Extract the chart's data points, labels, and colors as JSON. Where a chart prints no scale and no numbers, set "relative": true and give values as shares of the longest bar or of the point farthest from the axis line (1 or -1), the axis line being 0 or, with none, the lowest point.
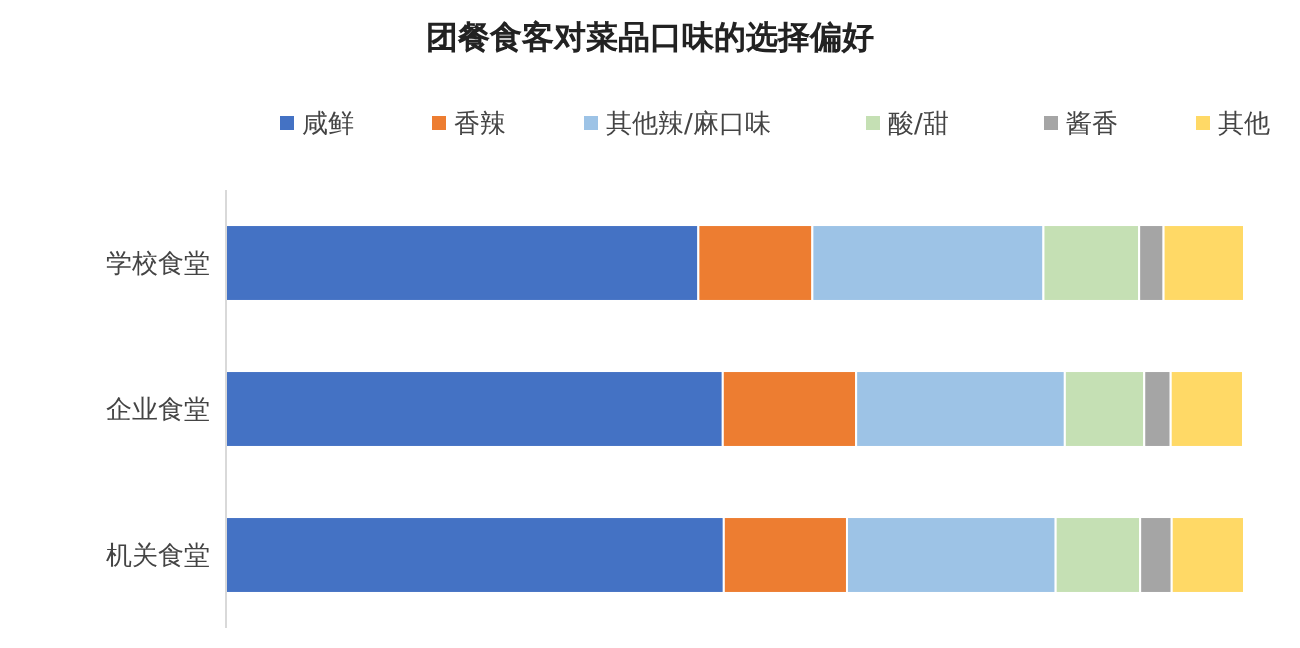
{
  "chart_data": {
    "type": "bar",
    "title": "团餐食客对菜品口味的选择偏好",
    "orientation": "horizontal",
    "stacked": true,
    "relative": true,
    "legend": "top",
    "categories": [
      "学校食堂",
      "企业食堂",
      "机关食堂"
    ],
    "series": [
      {
        "name": "咸鲜",
        "color": "#4472c4",
        "values": [
          0.464,
          0.488,
          0.489
        ]
      },
      {
        "name": "香辣",
        "color": "#ed7d31",
        "values": [
          0.112,
          0.131,
          0.121
        ]
      },
      {
        "name": "其他辣/麻口味",
        "color": "#9dc3e6",
        "values": [
          0.227,
          0.205,
          0.205
        ]
      },
      {
        "name": "酸/甜",
        "color": "#c5e0b4",
        "values": [
          0.094,
          0.078,
          0.083
        ]
      },
      {
        "name": "酱香",
        "color": "#a5a5a5",
        "values": [
          0.024,
          0.026,
          0.031
        ]
      },
      {
        "name": "其他",
        "color": "#ffd966",
        "values": [
          0.079,
          0.071,
          0.071
        ]
      }
    ]
  }
}
